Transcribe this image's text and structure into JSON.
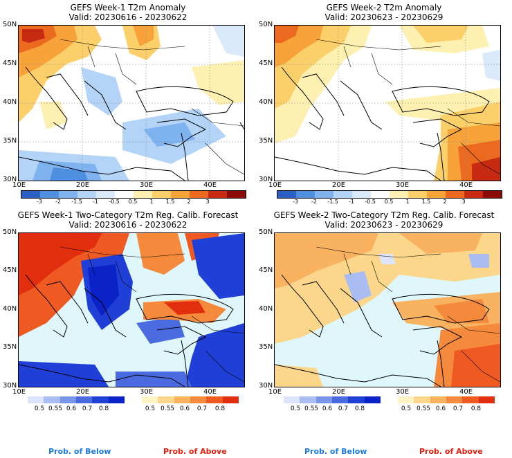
{
  "panels": {
    "w1_anom": {
      "title": "GEFS Week-1 T2m Anomaly",
      "valid": "Valid: 20230616 - 20230622",
      "colorbar_labels": [
        "-3",
        "-2",
        "-1.5",
        "-1",
        "-0.5",
        "0.5",
        "1",
        "1.5",
        "2",
        "3"
      ],
      "colorbar_colors": [
        "#2a5fc4",
        "#4f8fe0",
        "#7fb3f0",
        "#b3d4f7",
        "#dbeafb",
        "#ffffff",
        "#fdf0b0",
        "#fbd06a",
        "#f8a33a",
        "#ec6a1f",
        "#c62a10",
        "#8a0a06"
      ]
    },
    "w2_anom": {
      "title": "GEFS Week-2 T2m Anomaly",
      "valid": "Valid: 20230623 - 20230629",
      "colorbar_labels": [
        "-3",
        "-2",
        "-1.5",
        "-1",
        "-0.5",
        "0.5",
        "1",
        "1.5",
        "2",
        "3"
      ],
      "colorbar_colors": [
        "#2a5fc4",
        "#4f8fe0",
        "#7fb3f0",
        "#b3d4f7",
        "#dbeafb",
        "#ffffff",
        "#fdf0b0",
        "#fbd06a",
        "#f8a33a",
        "#ec6a1f",
        "#c62a10",
        "#8a0a06"
      ]
    },
    "w1_prob": {
      "title": "GEFS Week-1 Two-Category T2m Reg. Calib. Forecast",
      "valid": "Valid: 20230616 - 20230622",
      "below_labels": [
        "0.5",
        "0.55",
        "0.6",
        "0.7",
        "0.8"
      ],
      "above_labels": [
        "0.5",
        "0.55",
        "0.6",
        "0.7",
        "0.8"
      ],
      "below_colors": [
        "#dbe4fb",
        "#aabdf3",
        "#7895ea",
        "#4a6ae0",
        "#1f3fd6",
        "#0a22c8"
      ],
      "above_colors": [
        "#fdf3c4",
        "#fcd68a",
        "#f9b260",
        "#f58a3c",
        "#ef5a22",
        "#e02e0e"
      ],
      "below_title": "Prob. of Below",
      "above_title": "Prob. of Above"
    },
    "w2_prob": {
      "title": "GEFS Week-2 Two-Category T2m Reg. Calib. Forecast",
      "valid": "Valid: 20230623 - 20230629",
      "below_labels": [
        "0.5",
        "0.55",
        "0.6",
        "0.7",
        "0.8"
      ],
      "above_labels": [
        "0.5",
        "0.55",
        "0.6",
        "0.7",
        "0.8"
      ],
      "below_colors": [
        "#dbe4fb",
        "#aabdf3",
        "#7895ea",
        "#4a6ae0",
        "#1f3fd6",
        "#0a22c8"
      ],
      "above_colors": [
        "#fdf3c4",
        "#fcd68a",
        "#f9b260",
        "#f58a3c",
        "#ef5a22",
        "#e02e0e"
      ],
      "below_title": "Prob. of Below",
      "above_title": "Prob. of Above"
    }
  },
  "axes": {
    "lat_labels": [
      "50N",
      "45N",
      "40N",
      "35N",
      "30N"
    ],
    "lon_labels": [
      "10E",
      "20E",
      "30E",
      "40E"
    ]
  },
  "colors": {
    "sea_light": "#dff6fb",
    "below_color_text": "#1e7bdc",
    "above_color_text": "#e01e0e"
  }
}
